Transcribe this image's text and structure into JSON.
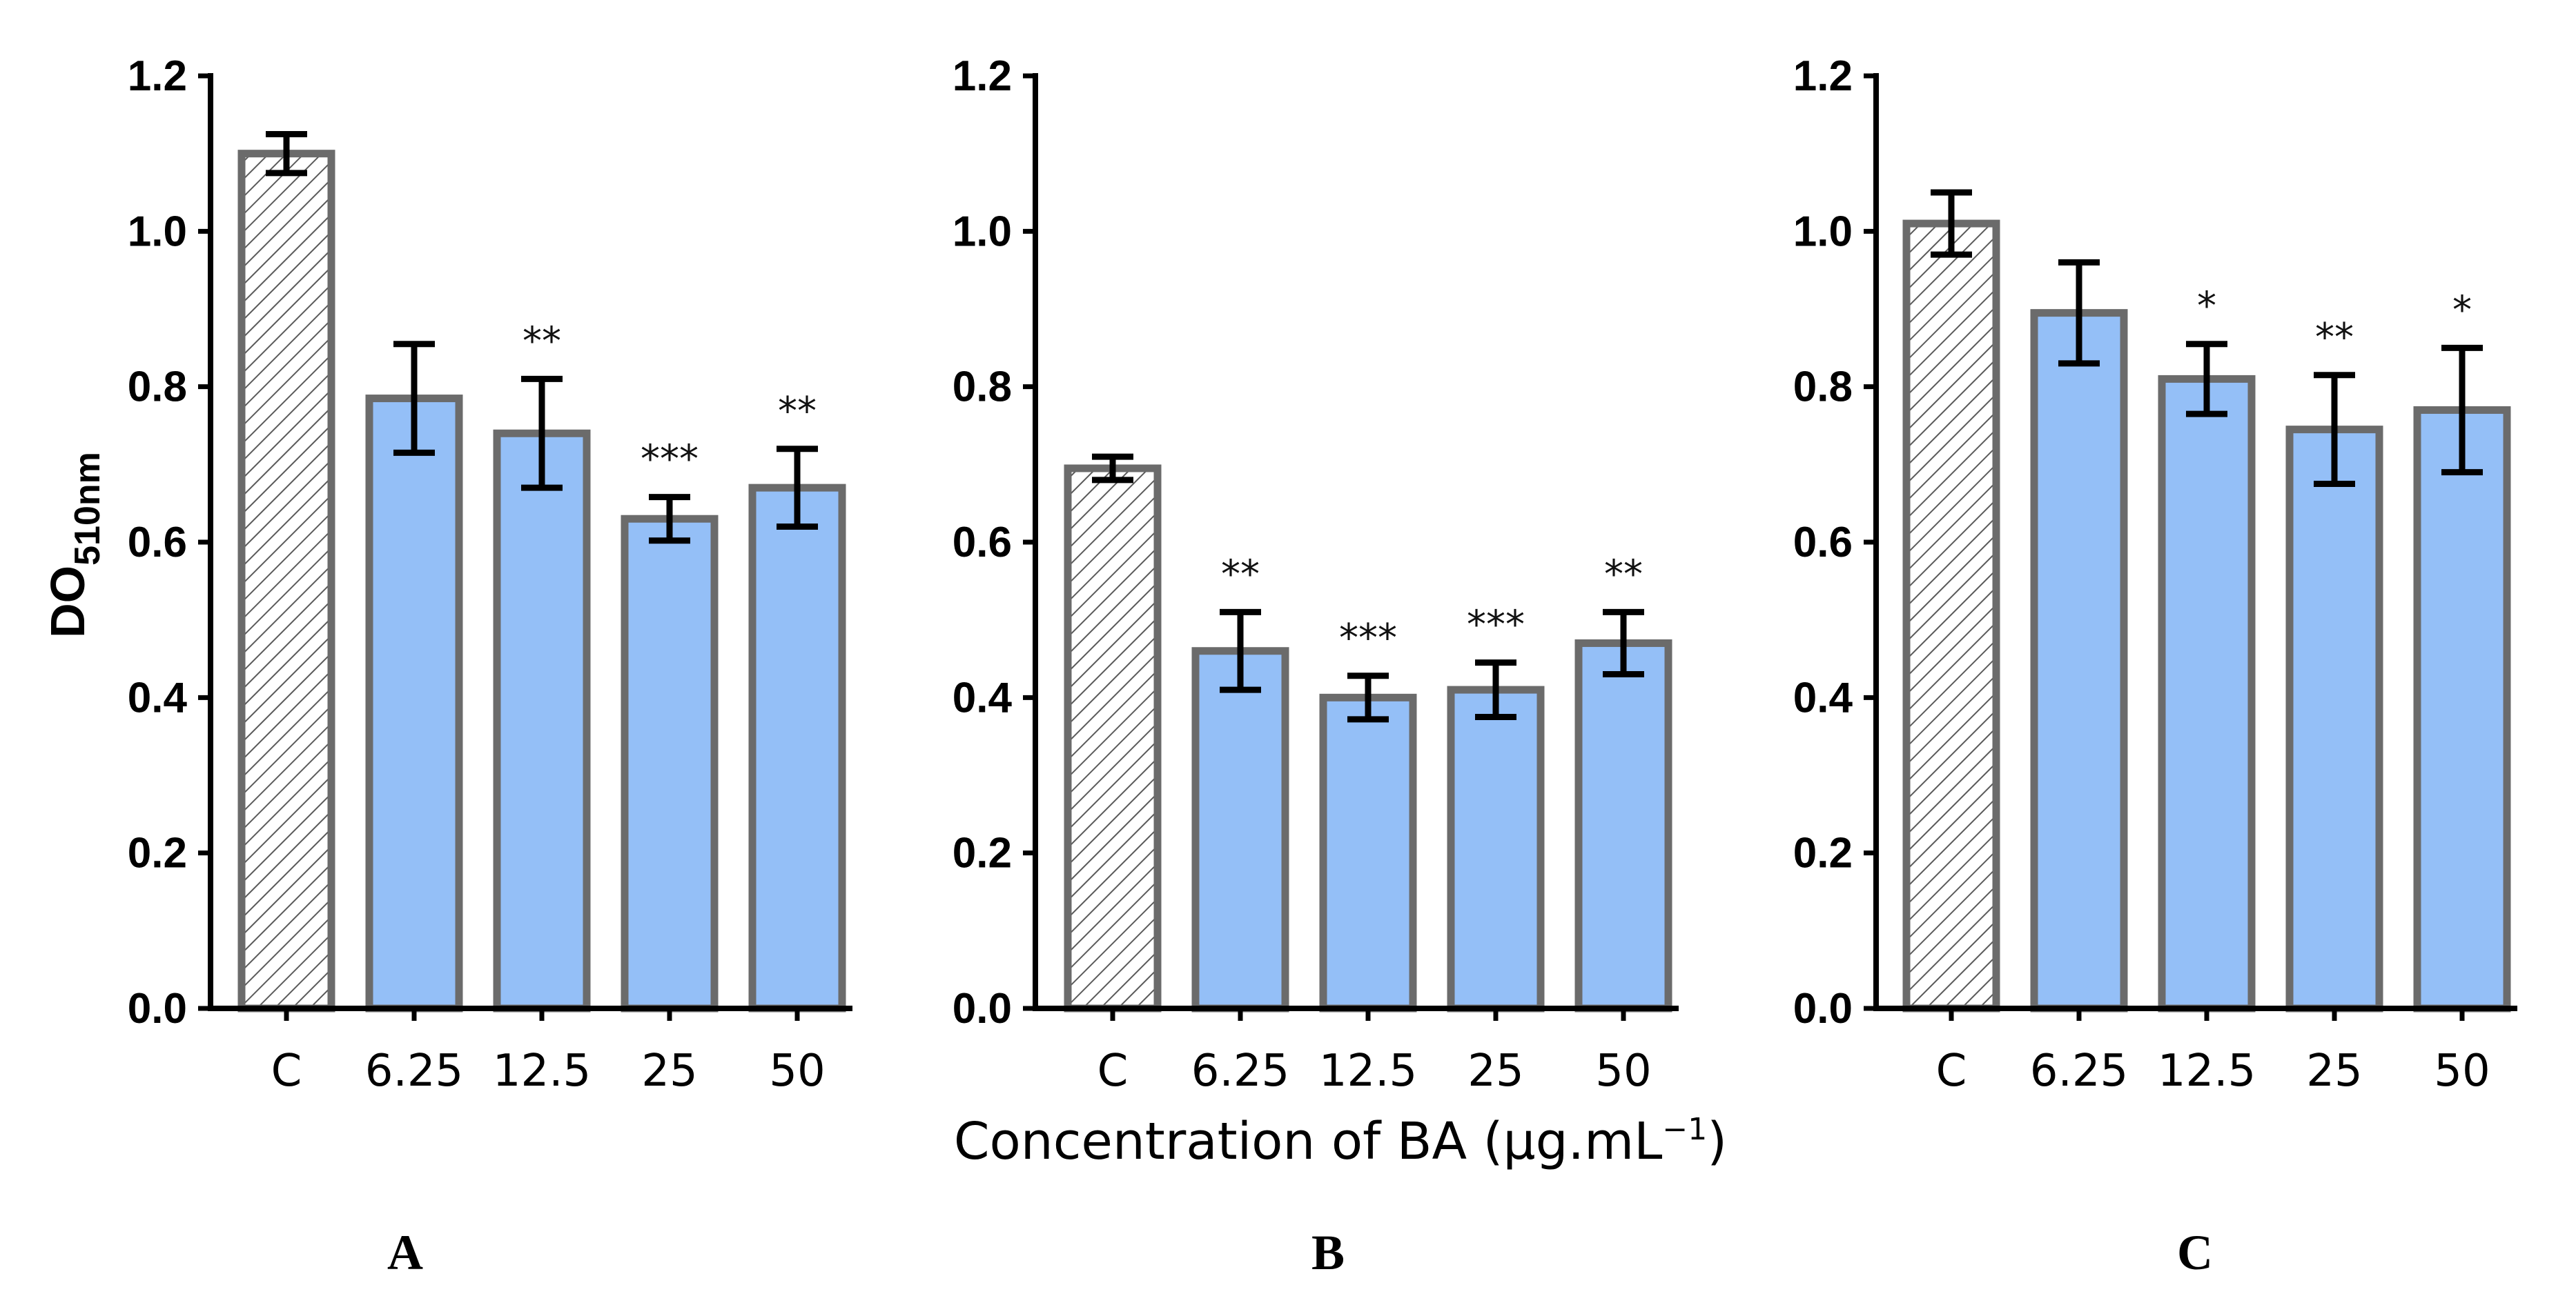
{
  "chart_data": [
    {
      "type": "bar",
      "panel": "A",
      "categories": [
        "C",
        "6.25",
        "12.5",
        "25",
        "50"
      ],
      "values": [
        1.1,
        0.785,
        0.74,
        0.63,
        0.67
      ],
      "errors": [
        0.025,
        0.07,
        0.07,
        0.028,
        0.05
      ],
      "significance": [
        "",
        "",
        "**",
        "***",
        "**"
      ],
      "ylabel_main": "DO",
      "ylabel_sub": "510nm",
      "ylim": [
        0,
        1.2
      ],
      "yticks": [
        "0.0",
        "0.2",
        "0.4",
        "0.6",
        "0.8",
        "1.0",
        "1.2"
      ],
      "control_fill": "hatched",
      "bar_color": "#94bff7",
      "bar_edge_color": "#6b6b6b"
    },
    {
      "type": "bar",
      "panel": "B",
      "categories": [
        "C",
        "6.25",
        "12.5",
        "25",
        "50"
      ],
      "values": [
        0.695,
        0.46,
        0.4,
        0.41,
        0.47
      ],
      "errors": [
        0.015,
        0.05,
        0.028,
        0.035,
        0.04
      ],
      "significance": [
        "",
        "**",
        "***",
        "***",
        "**"
      ],
      "ylim": [
        0,
        1.2
      ],
      "yticks": [
        "0.0",
        "0.2",
        "0.4",
        "0.6",
        "0.8",
        "1.0",
        "1.2"
      ],
      "control_fill": "hatched",
      "bar_color": "#94bff7",
      "bar_edge_color": "#6b6b6b"
    },
    {
      "type": "bar",
      "panel": "C",
      "categories": [
        "C",
        "6.25",
        "12.5",
        "25",
        "50"
      ],
      "values": [
        1.01,
        0.895,
        0.81,
        0.745,
        0.77
      ],
      "errors": [
        0.04,
        0.065,
        0.045,
        0.07,
        0.08
      ],
      "significance": [
        "",
        "",
        "*",
        "**",
        "*"
      ],
      "ylim": [
        0,
        1.2
      ],
      "yticks": [
        "0.0",
        "0.2",
        "0.4",
        "0.6",
        "0.8",
        "1.0",
        "1.2"
      ],
      "control_fill": "hatched",
      "bar_color": "#94bff7",
      "bar_edge_color": "#6b6b6b"
    }
  ],
  "shared_xlabel": {
    "text": "Concentration of BA (µg.mL",
    "superscript": "−1",
    "close": ")"
  }
}
